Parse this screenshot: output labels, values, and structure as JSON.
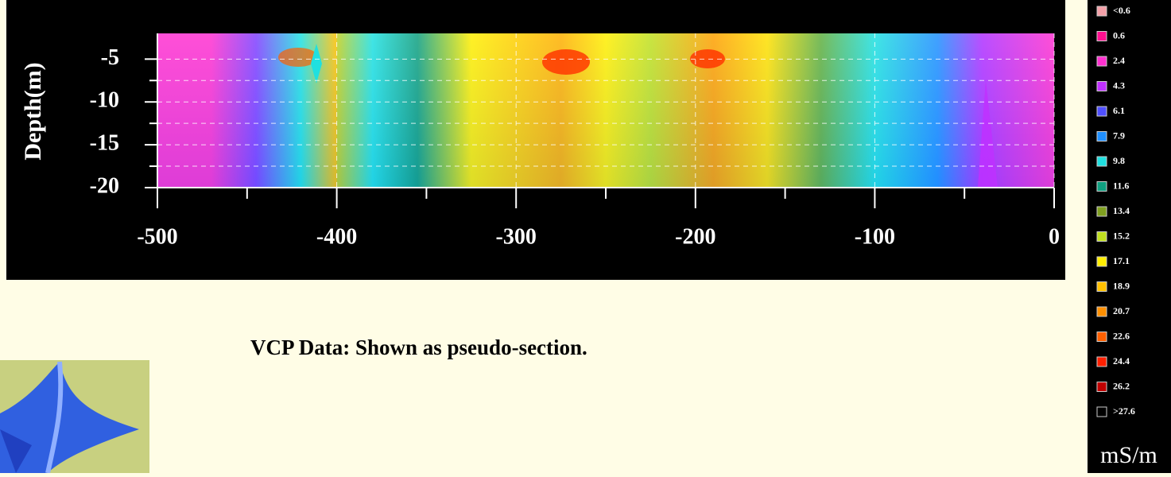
{
  "plot": {
    "y_label": "Depth(m)",
    "yticks": [
      -5,
      -10,
      -15,
      -20
    ],
    "ylim": [
      -2,
      -20
    ],
    "xticks": [
      -500,
      -400,
      -300,
      -200,
      -100,
      0
    ],
    "xlim": [
      -500,
      0
    ]
  },
  "legend": {
    "entries": [
      {
        "label": "<0.6",
        "color": "#f4a0a8"
      },
      {
        "label": "0.6",
        "color": "#ff1090"
      },
      {
        "label": "2.4",
        "color": "#ff30d0"
      },
      {
        "label": "4.3",
        "color": "#c030ff"
      },
      {
        "label": "6.1",
        "color": "#5050ff"
      },
      {
        "label": "7.9",
        "color": "#2090ff"
      },
      {
        "label": "9.8",
        "color": "#20e0e0"
      },
      {
        "label": "11.6",
        "color": "#10a080"
      },
      {
        "label": "13.4",
        "color": "#80a020"
      },
      {
        "label": "15.2",
        "color": "#c0e020"
      },
      {
        "label": "17.1",
        "color": "#ffee00"
      },
      {
        "label": "18.9",
        "color": "#ffc000"
      },
      {
        "label": "20.7",
        "color": "#ff9000"
      },
      {
        "label": "22.6",
        "color": "#ff6000"
      },
      {
        "label": "24.4",
        "color": "#ff2000"
      },
      {
        "label": "26.2",
        "color": "#c00000"
      },
      {
        "label": ">27.6",
        "color": "#000000"
      }
    ],
    "unit": "mS/m"
  },
  "caption": "VCP Data: Shown as pseudo-section."
}
